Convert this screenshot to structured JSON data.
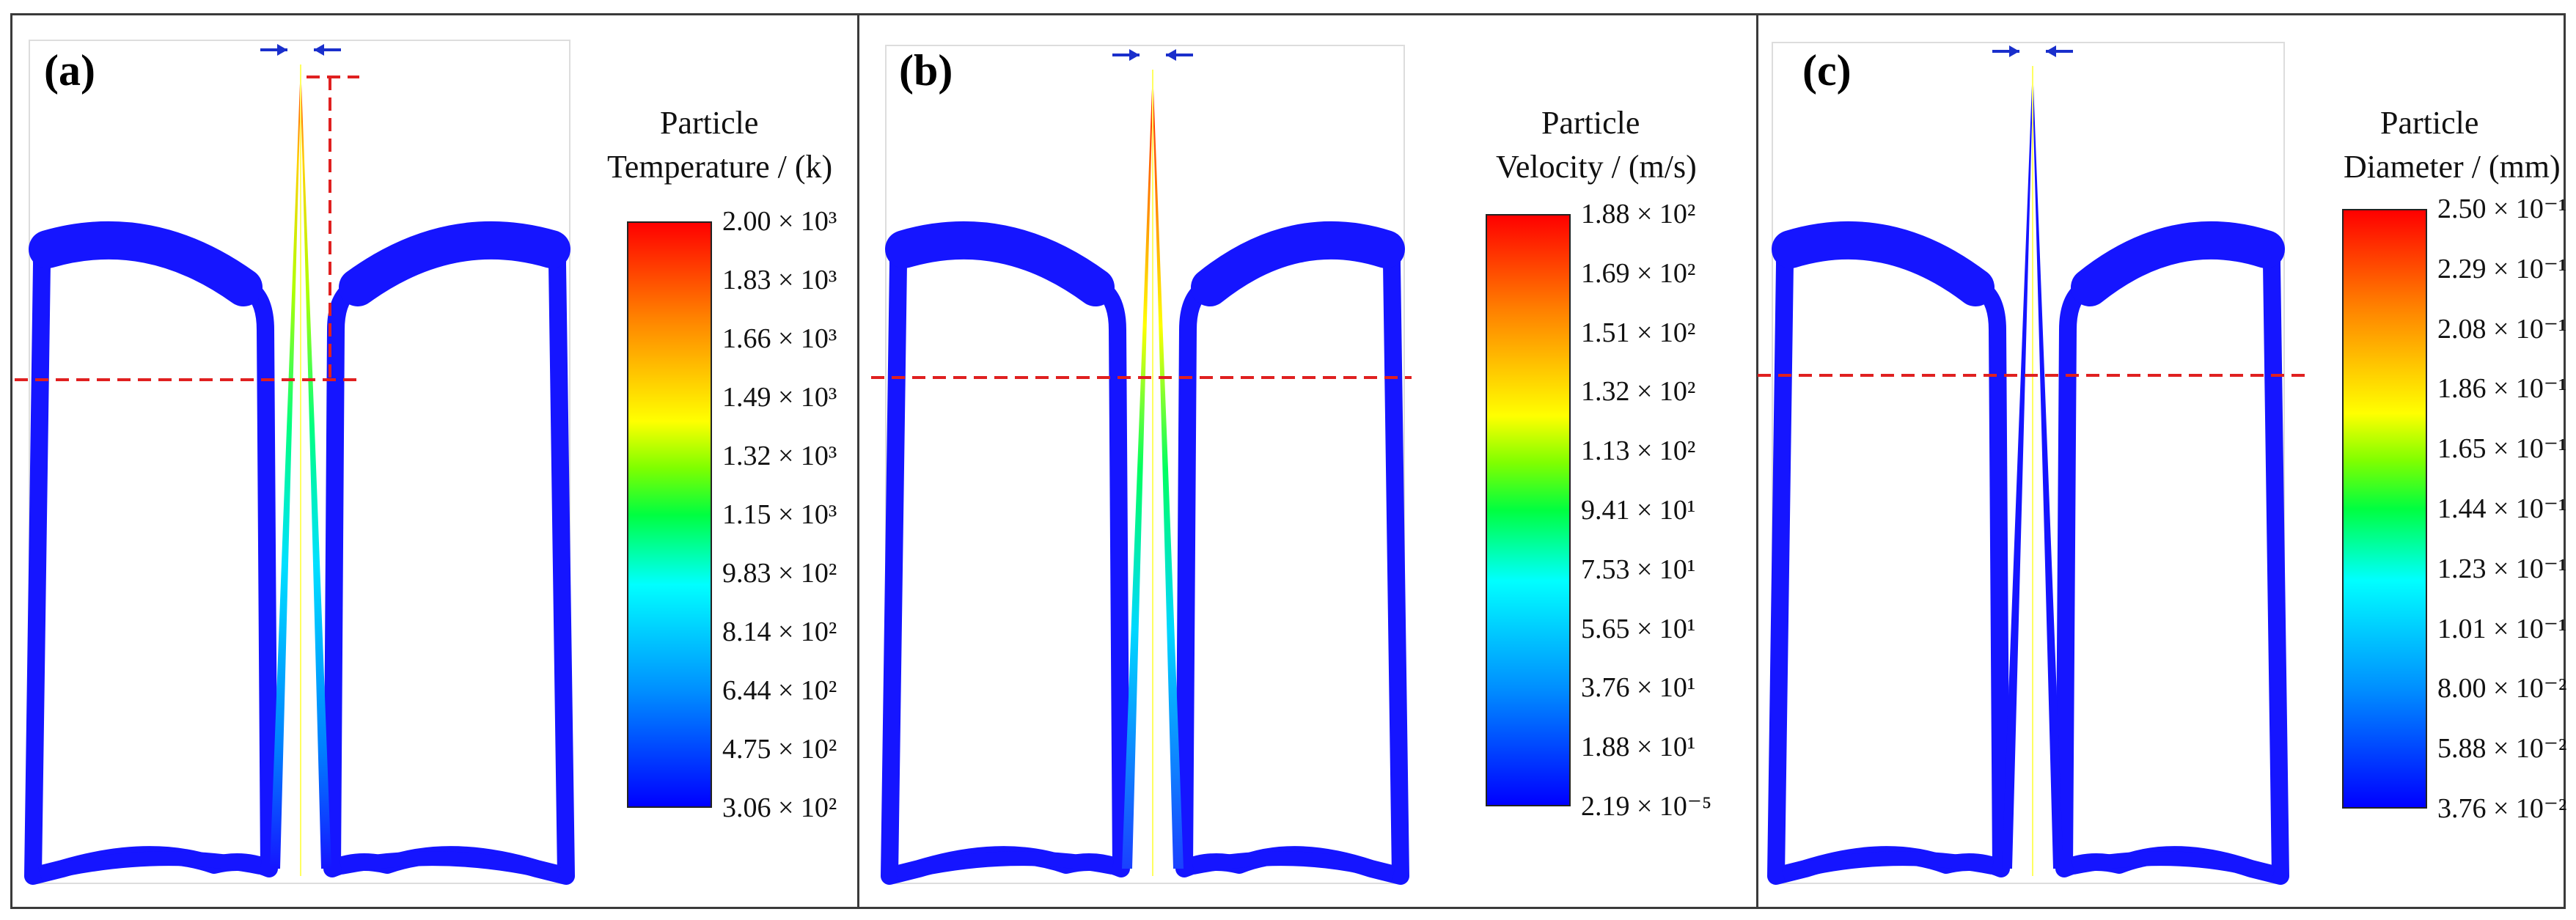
{
  "figure": {
    "panels": [
      {
        "label": "(a)",
        "colorbar": {
          "title_line1": "Particle",
          "title_line2": "Temperature / (k)",
          "ticks": [
            "2.00 × 10³",
            "1.83 × 10³",
            "1.66 × 10³",
            "1.49 × 10³",
            "1.32 × 10³",
            "1.15 × 10³",
            "9.83 × 10²",
            "8.14 × 10²",
            "6.44 × 10²",
            "4.75 × 10²",
            "3.06 × 10²"
          ]
        }
      },
      {
        "label": "(b)",
        "colorbar": {
          "title_line1": "Particle",
          "title_line2": "Velocity / (m/s)",
          "ticks": [
            "1.88 × 10²",
            "1.69 × 10²",
            "1.51 × 10²",
            "1.32 × 10²",
            "1.13 × 10²",
            "9.41 × 10¹",
            "7.53 × 10¹",
            "5.65 × 10¹",
            "3.76 × 10¹",
            "1.88 × 10¹",
            "2.19 × 10⁻⁵"
          ]
        }
      },
      {
        "label": "(c)",
        "colorbar": {
          "title_line1": "Particle",
          "title_line2": "Diameter / (mm)",
          "ticks": [
            "2.50 × 10⁻¹",
            "2.29 × 10⁻¹",
            "2.08 × 10⁻¹",
            "1.86 × 10⁻¹",
            "1.65 × 10⁻¹",
            "1.44 × 10⁻¹",
            "1.23 × 10⁻¹",
            "1.01 × 10⁻¹",
            "8.00 × 10⁻²",
            "5.88 × 10⁻²",
            "3.76 × 10⁻²"
          ]
        }
      }
    ]
  },
  "colors": {
    "particle_field": "#1515ff",
    "marker_lines": "#e02020",
    "arrows": "#1a2fcc",
    "frame": "#3a3a3a"
  }
}
